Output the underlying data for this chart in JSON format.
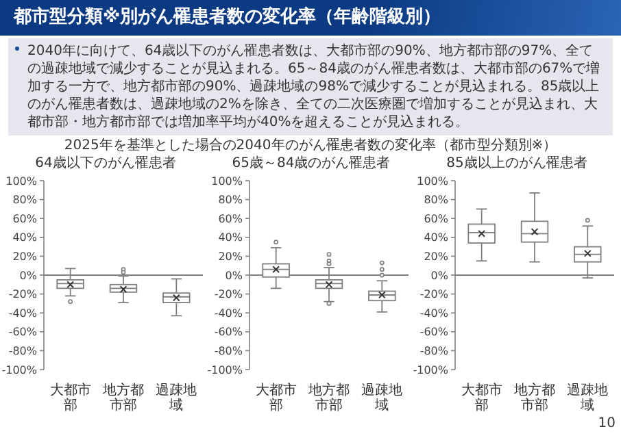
{
  "chart_data": [
    {
      "type": "other",
      "title": "都市型分類※別がん罹患者数の変化率（年齢階級別）",
      "annotations": [
        "2040年に向けて、64歳以下のがん罹患者数は、大都市部の90%、地方都市部の97%、全ての過疎地域で減少することが見込まれる。65～84歳のがん罹患者数は、大都市部の67%で増加する一方で、地方都市部の90%、過疎地域の98%で減少することが見込まれる。85歳以上のがん罹患者数は、過疎地域の2%を除き、全ての二次医療圏で増加することが見込まれ、大都市部・地方都市部では増加率平均が40%を超えることが見込まれる。",
        "2025年を基準とした場合の2040年のがん罹患者数の変化率（都市型分類別※）",
        "10"
      ]
    },
    {
      "type": "box",
      "title": "64歳以下のがん罹患者",
      "color": "#7f7f7f",
      "categories": [
        "大都市部",
        "地方都市部",
        "過疎地域"
      ],
      "ylim": [
        -100,
        100
      ],
      "yticks": [
        {
          "value": 100,
          "label": "100%"
        },
        {
          "value": 80,
          "label": "80%"
        },
        {
          "value": 60,
          "label": "60%"
        },
        {
          "value": 40,
          "label": "40%"
        },
        {
          "value": 20,
          "label": "20%"
        },
        {
          "value": 0,
          "label": "0%"
        },
        {
          "value": -20,
          "label": "-20%"
        },
        {
          "value": -40,
          "label": "-40%"
        },
        {
          "value": -60,
          "label": "-60%"
        },
        {
          "value": -80,
          "label": "-80%"
        },
        {
          "value": -100,
          "label": "-100%"
        }
      ],
      "boxes": [
        {
          "low": -22,
          "q1": -14,
          "median": -9,
          "q3": -5,
          "high": 7,
          "mean": -10,
          "outliers": [
            -28
          ]
        },
        {
          "low": -29,
          "q1": -18,
          "median": -14,
          "q3": -10,
          "high": -1,
          "mean": -15,
          "outliers": [
            6,
            3
          ]
        },
        {
          "low": -43,
          "q1": -29,
          "median": -23,
          "q3": -19,
          "high": -4,
          "mean": -24
        }
      ]
    },
    {
      "type": "box",
      "title": "65歳～84歳のがん罹患者",
      "color": "#7f7f7f",
      "categories": [
        "大都市部",
        "地方都市部",
        "過疎地域"
      ],
      "ylim": [
        -100,
        100
      ],
      "yticks": [
        {
          "value": 100,
          "label": "100%"
        },
        {
          "value": 80,
          "label": "80%"
        },
        {
          "value": 60,
          "label": "60%"
        },
        {
          "value": 40,
          "label": "40%"
        },
        {
          "value": 20,
          "label": "20%"
        },
        {
          "value": 0,
          "label": "0%"
        },
        {
          "value": -20,
          "label": "-20%"
        },
        {
          "value": -40,
          "label": "-40%"
        },
        {
          "value": -60,
          "label": "-60%"
        },
        {
          "value": -80,
          "label": "-80%"
        },
        {
          "value": -100,
          "label": "-100%"
        }
      ],
      "boxes": [
        {
          "low": -14,
          "q1": -2,
          "median": 6,
          "q3": 12,
          "high": 29,
          "mean": 6,
          "outliers": [
            35
          ]
        },
        {
          "low": -28,
          "q1": -14,
          "median": -9,
          "q3": -5,
          "high": 8,
          "mean": -10,
          "outliers": [
            22,
            15,
            12,
            -30
          ]
        },
        {
          "low": -39,
          "q1": -27,
          "median": -21,
          "q3": -17,
          "high": -6,
          "mean": -21,
          "outliers": [
            13,
            6,
            0
          ]
        }
      ]
    },
    {
      "type": "box",
      "title": "85歳以上のがん罹患者",
      "color": "#7f7f7f",
      "categories": [
        "大都市部",
        "地方都市部",
        "過疎地域"
      ],
      "ylim": [
        -100,
        100
      ],
      "yticks": [
        {
          "value": 100,
          "label": "100%"
        },
        {
          "value": 80,
          "label": "80%"
        },
        {
          "value": 60,
          "label": "60%"
        },
        {
          "value": 40,
          "label": "40%"
        },
        {
          "value": 20,
          "label": "20%"
        },
        {
          "value": 0,
          "label": "0%"
        },
        {
          "value": -20,
          "label": "-20%"
        },
        {
          "value": -40,
          "label": "-40%"
        },
        {
          "value": -60,
          "label": "-60%"
        },
        {
          "value": -80,
          "label": "-80%"
        },
        {
          "value": -100,
          "label": "-100%"
        }
      ],
      "boxes": [
        {
          "low": 15,
          "q1": 34,
          "median": 45,
          "q3": 54,
          "high": 70,
          "mean": 44
        },
        {
          "low": 14,
          "q1": 35,
          "median": 44,
          "q3": 57,
          "high": 87,
          "mean": 46
        },
        {
          "low": -3,
          "q1": 14,
          "median": 22,
          "q3": 30,
          "high": 52,
          "mean": 23,
          "outliers": [
            58
          ]
        }
      ]
    }
  ]
}
